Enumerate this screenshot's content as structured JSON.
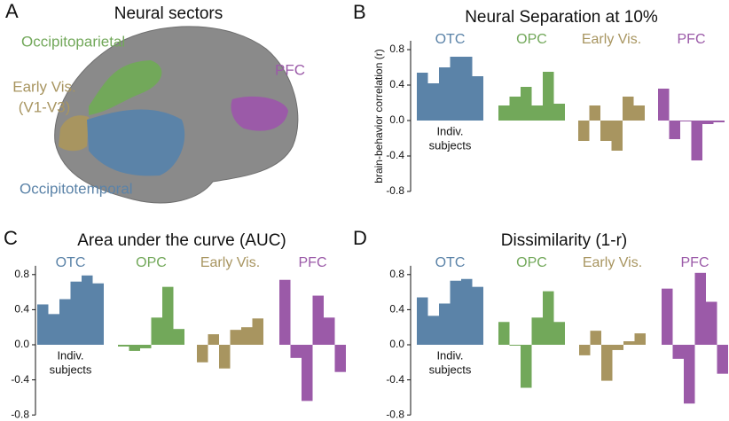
{
  "panel_a": {
    "letter": "A",
    "title": "Neural sectors",
    "labels": [
      {
        "text": "Occipitoparietal",
        "color": "#72a85a"
      },
      {
        "text": "Early Vis.",
        "color": "#a89560"
      },
      {
        "text": "(V1-V3)",
        "color": "#a89560"
      },
      {
        "text": "PFC",
        "color": "#9b5aa8"
      },
      {
        "text": "Occipitotemporal",
        "color": "#5b83a8"
      }
    ]
  },
  "chart_data": [
    {
      "type": "bar",
      "panel": "B",
      "title": "Neural Separation at 10%",
      "ylabel": "brain-behavior correlation (r)",
      "annotation": [
        "Indiv.",
        "subjects"
      ],
      "ylim": [
        -0.8,
        0.9
      ],
      "yticks": [
        -0.8,
        -0.4,
        {
          "value": 0,
          "label": "0.0"
        },
        0.4,
        0.8
      ],
      "series": [
        {
          "name": "OTC",
          "color": "#5b83a8",
          "values": [
            0.54,
            0.42,
            0.6,
            0.72,
            0.72,
            0.5
          ]
        },
        {
          "name": "OPC",
          "color": "#72a85a",
          "values": [
            0.17,
            0.27,
            0.38,
            0.17,
            0.55,
            0.19
          ]
        },
        {
          "name": "Early Vis.",
          "color": "#a89560",
          "values": [
            -0.23,
            0.17,
            -0.23,
            -0.34,
            0.27,
            0.17
          ]
        },
        {
          "name": "PFC",
          "color": "#9b5aa8",
          "values": [
            0.36,
            -0.21,
            -0.01,
            -0.45,
            -0.04,
            -0.02
          ]
        }
      ]
    },
    {
      "type": "bar",
      "panel": "C",
      "title": "Area under the curve (AUC)",
      "annotation": [
        "Indiv.",
        "subjects"
      ],
      "ylim": [
        -0.8,
        0.9
      ],
      "yticks": [
        -0.8,
        -0.4,
        {
          "value": 0,
          "label": "0.0"
        },
        0.4,
        0.8
      ],
      "series": [
        {
          "name": "OTC",
          "color": "#5b83a8",
          "values": [
            0.46,
            0.35,
            0.52,
            0.72,
            0.79,
            0.7
          ]
        },
        {
          "name": "OPC",
          "color": "#72a85a",
          "values": [
            -0.02,
            -0.07,
            -0.04,
            0.31,
            0.66,
            0.18
          ]
        },
        {
          "name": "Early Vis.",
          "color": "#a89560",
          "values": [
            -0.2,
            0.12,
            -0.27,
            0.17,
            0.2,
            0.3
          ]
        },
        {
          "name": "PFC",
          "color": "#9b5aa8",
          "values": [
            0.74,
            -0.15,
            -0.64,
            0.56,
            0.31,
            -0.31
          ]
        }
      ]
    },
    {
      "type": "bar",
      "panel": "D",
      "title": "Dissimilarity (1-r)",
      "annotation": [
        "Indiv.",
        "subjects"
      ],
      "ylim": [
        -0.8,
        0.9
      ],
      "yticks": [
        -0.8,
        -0.4,
        {
          "value": 0,
          "label": "0.0"
        },
        0.4,
        0.8
      ],
      "series": [
        {
          "name": "OTC",
          "color": "#5b83a8",
          "values": [
            0.54,
            0.33,
            0.47,
            0.73,
            0.75,
            0.66
          ]
        },
        {
          "name": "OPC",
          "color": "#72a85a",
          "values": [
            0.26,
            -0.01,
            -0.49,
            0.31,
            0.61,
            0.26
          ]
        },
        {
          "name": "Early Vis.",
          "color": "#a89560",
          "values": [
            -0.12,
            0.16,
            -0.41,
            -0.06,
            0.04,
            0.13
          ]
        },
        {
          "name": "PFC",
          "color": "#9b5aa8",
          "values": [
            0.64,
            -0.16,
            -0.67,
            0.82,
            0.49,
            -0.33
          ]
        }
      ]
    }
  ]
}
